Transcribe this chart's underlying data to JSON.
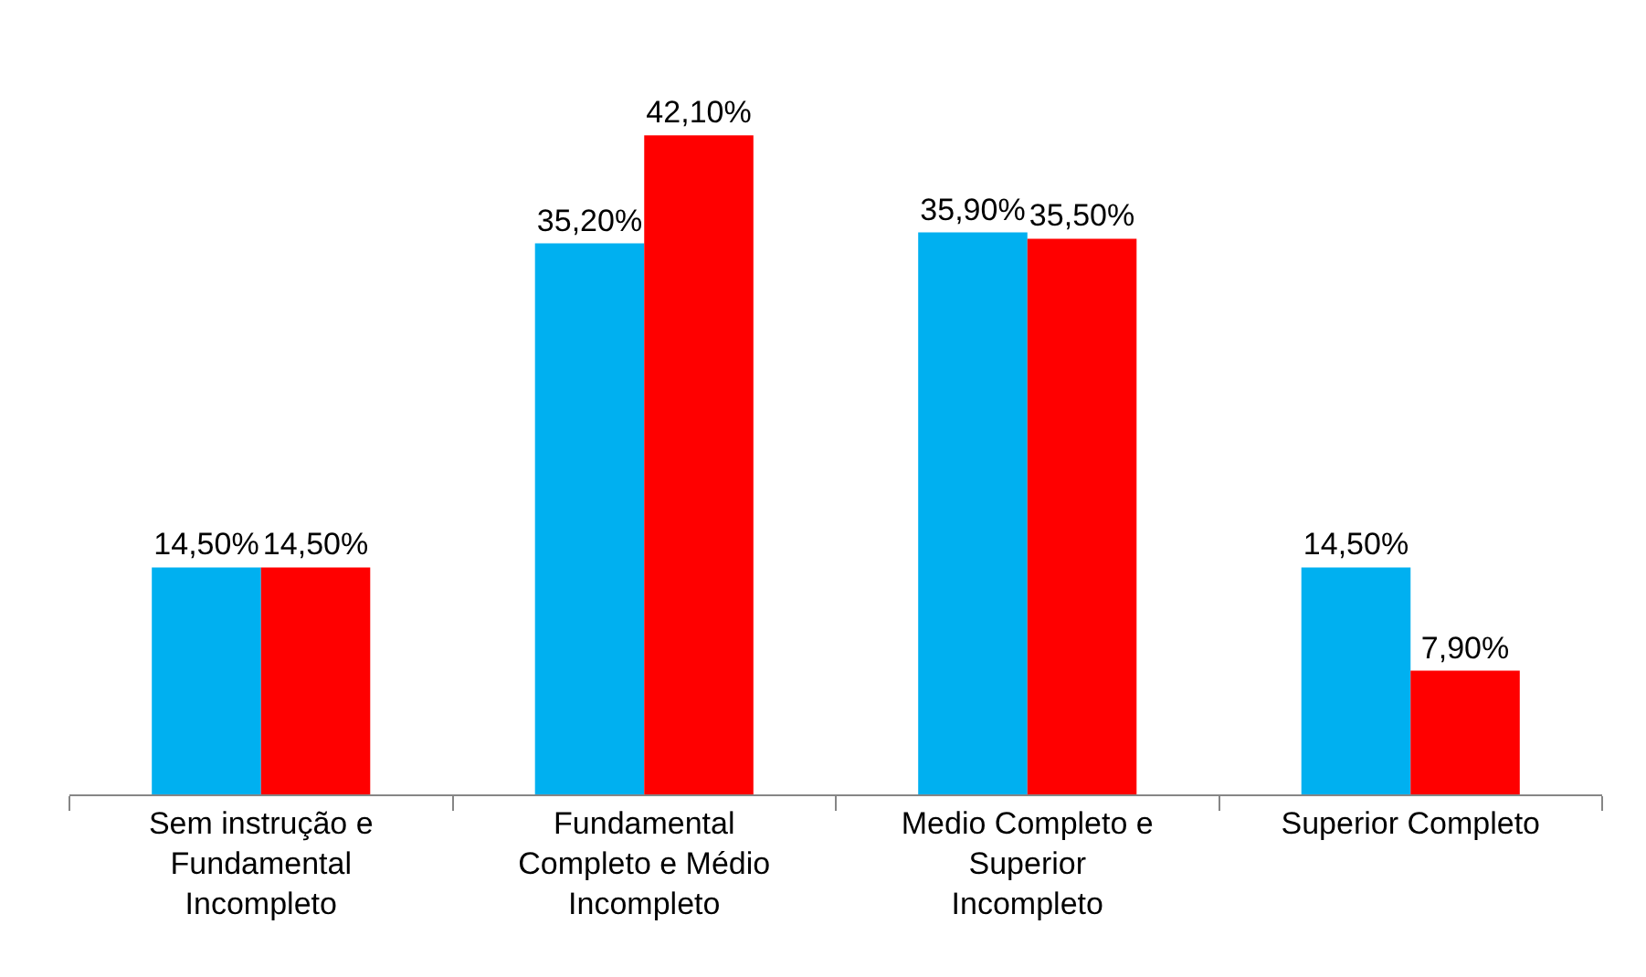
{
  "chart_data": {
    "type": "bar",
    "categories": [
      "Sem instrução e Fundamental Incompleto",
      "Fundamental Completo e Médio Incompleto",
      "Medio Completo e Superior Incompleto",
      "Superior Completo"
    ],
    "series": [
      {
        "color": "#00b0f0",
        "values": [
          14.5,
          35.2,
          35.9,
          14.5
        ],
        "value_labels": [
          "14,50%",
          "35,20%",
          "35,90%",
          "14,50%"
        ]
      },
      {
        "color": "#ff0000",
        "values": [
          14.5,
          42.1,
          35.5,
          7.9
        ],
        "value_labels": [
          "14,50%",
          "42,10%",
          "35,50%",
          "7,90%"
        ]
      }
    ]
  }
}
